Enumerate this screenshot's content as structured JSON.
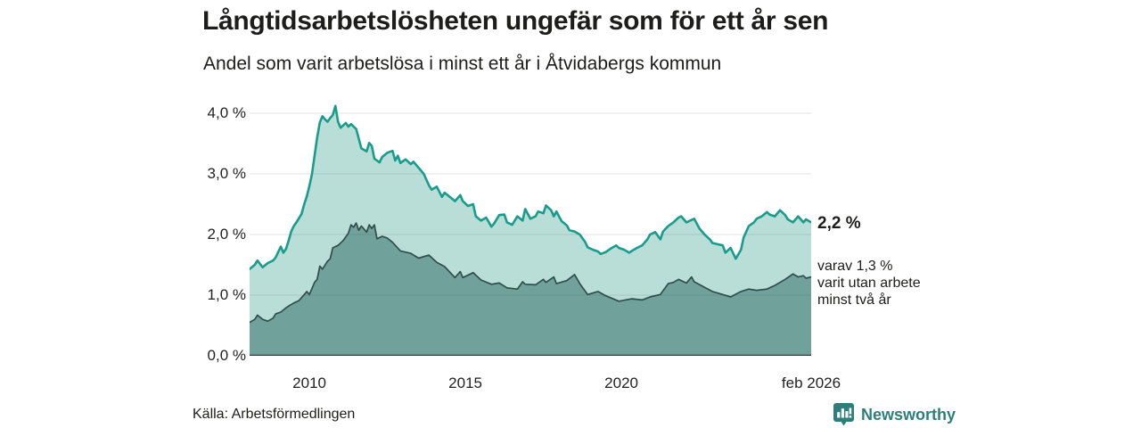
{
  "header": {
    "title": "Långtidsarbetslösheten ungefär som för ett år sen",
    "subtitle": "Andel som varit arbetslösa i minst ett år i Åtvidabergs kommun"
  },
  "annotations": {
    "total_label": "2,2 %",
    "sub_lines": [
      "varav 1,3 %",
      "varit utan arbete",
      "minst två år"
    ]
  },
  "footer": {
    "source": "Källa: Arbetsförmedlingen",
    "brand": "Newsworthy"
  },
  "colors": {
    "total_line": "#1a9c8c",
    "total_fill": "#b9ddd7",
    "two_year_line": "#2e4f4b",
    "two_year_fill": "#71a19b",
    "grid": "rgba(60,60,60,0.15)",
    "axis": "#3a3a3a",
    "brand_teal": "#2f7e7b"
  },
  "chart_data": {
    "type": "area",
    "title": "Långtidsarbetslösheten ungefär som för ett år sen",
    "subtitle": "Andel som varit arbetslösa i minst ett år i Åtvidabergs kommun",
    "x_unit": "months since feb 2008",
    "x_range_months": [
      0,
      216
    ],
    "ylim": [
      0,
      4.3
    ],
    "grid": true,
    "x_axis_ticks": [
      {
        "m": 23,
        "label": "2010"
      },
      {
        "m": 83,
        "label": "2015"
      },
      {
        "m": 143,
        "label": "2020"
      },
      {
        "m": 216,
        "label": "feb 2026"
      }
    ],
    "y_axis_ticks": [
      {
        "value": 0,
        "label": "0,0 %"
      },
      {
        "value": 1,
        "label": "1,0 %"
      },
      {
        "value": 2,
        "label": "2,0 %"
      },
      {
        "value": 3,
        "label": "3,0 %"
      },
      {
        "value": 4,
        "label": "4,0 %"
      }
    ],
    "series": [
      {
        "name": "Arbetslösa minst ett år",
        "end_value_label": "2,2 %",
        "line_color": "#1a9c8c",
        "fill_color": "#b9ddd7",
        "line_width": 2.6,
        "points": [
          [
            0,
            1.43
          ],
          [
            2,
            1.5
          ],
          [
            3,
            1.57
          ],
          [
            5,
            1.46
          ],
          [
            7,
            1.53
          ],
          [
            9,
            1.57
          ],
          [
            10,
            1.62
          ],
          [
            12,
            1.8
          ],
          [
            13,
            1.7
          ],
          [
            14,
            1.76
          ],
          [
            15,
            1.9
          ],
          [
            16,
            2.05
          ],
          [
            17,
            2.14
          ],
          [
            18,
            2.2
          ],
          [
            20,
            2.34
          ],
          [
            21,
            2.5
          ],
          [
            22,
            2.63
          ],
          [
            23,
            2.8
          ],
          [
            24,
            3.0
          ],
          [
            25,
            3.3
          ],
          [
            26,
            3.6
          ],
          [
            27,
            3.85
          ],
          [
            28,
            3.95
          ],
          [
            29,
            3.9
          ],
          [
            30,
            3.86
          ],
          [
            31,
            3.92
          ],
          [
            32,
            3.97
          ],
          [
            33,
            4.12
          ],
          [
            34,
            3.86
          ],
          [
            35,
            3.76
          ],
          [
            37,
            3.84
          ],
          [
            38,
            3.78
          ],
          [
            39,
            3.82
          ],
          [
            41,
            3.74
          ],
          [
            43,
            3.42
          ],
          [
            45,
            3.37
          ],
          [
            46,
            3.51
          ],
          [
            47,
            3.46
          ],
          [
            48,
            3.25
          ],
          [
            50,
            3.19
          ],
          [
            51,
            3.28
          ],
          [
            53,
            3.35
          ],
          [
            55,
            3.38
          ],
          [
            56,
            3.22
          ],
          [
            57,
            3.3
          ],
          [
            58,
            3.18
          ],
          [
            60,
            3.24
          ],
          [
            62,
            3.16
          ],
          [
            63,
            3.2
          ],
          [
            65,
            3.1
          ],
          [
            67,
            3.0
          ],
          [
            69,
            2.81
          ],
          [
            70,
            2.74
          ],
          [
            72,
            2.79
          ],
          [
            74,
            2.62
          ],
          [
            75,
            2.69
          ],
          [
            77,
            2.62
          ],
          [
            79,
            2.55
          ],
          [
            81,
            2.65
          ],
          [
            82,
            2.55
          ],
          [
            84,
            2.47
          ],
          [
            86,
            2.5
          ],
          [
            87,
            2.3
          ],
          [
            89,
            2.23
          ],
          [
            91,
            2.28
          ],
          [
            93,
            2.13
          ],
          [
            94,
            2.18
          ],
          [
            96,
            2.32
          ],
          [
            98,
            2.33
          ],
          [
            99,
            2.2
          ],
          [
            101,
            2.16
          ],
          [
            103,
            2.3
          ],
          [
            105,
            2.23
          ],
          [
            106,
            2.42
          ],
          [
            108,
            2.26
          ],
          [
            110,
            2.3
          ],
          [
            111,
            2.38
          ],
          [
            113,
            2.35
          ],
          [
            114,
            2.48
          ],
          [
            116,
            2.4
          ],
          [
            117,
            2.3
          ],
          [
            118,
            2.38
          ],
          [
            120,
            2.22
          ],
          [
            122,
            2.15
          ],
          [
            123,
            2.07
          ],
          [
            125,
            2.05
          ],
          [
            127,
            2.0
          ],
          [
            129,
            1.88
          ],
          [
            130,
            1.79
          ],
          [
            132,
            1.75
          ],
          [
            134,
            1.72
          ],
          [
            135,
            1.68
          ],
          [
            137,
            1.71
          ],
          [
            139,
            1.77
          ],
          [
            141,
            1.82
          ],
          [
            142,
            1.78
          ],
          [
            144,
            1.75
          ],
          [
            146,
            1.7
          ],
          [
            147,
            1.73
          ],
          [
            149,
            1.78
          ],
          [
            151,
            1.82
          ],
          [
            153,
            1.92
          ],
          [
            154,
            2.0
          ],
          [
            156,
            2.04
          ],
          [
            158,
            1.92
          ],
          [
            159,
            2.05
          ],
          [
            161,
            2.14
          ],
          [
            163,
            2.2
          ],
          [
            165,
            2.28
          ],
          [
            166,
            2.3
          ],
          [
            168,
            2.2
          ],
          [
            170,
            2.24
          ],
          [
            171,
            2.26
          ],
          [
            173,
            2.1
          ],
          [
            175,
            2.0
          ],
          [
            177,
            1.92
          ],
          [
            178,
            1.86
          ],
          [
            180,
            1.84
          ],
          [
            182,
            1.82
          ],
          [
            183,
            1.7
          ],
          [
            185,
            1.78
          ],
          [
            187,
            1.6
          ],
          [
            189,
            1.75
          ],
          [
            190,
            1.95
          ],
          [
            192,
            2.14
          ],
          [
            194,
            2.2
          ],
          [
            195,
            2.26
          ],
          [
            197,
            2.3
          ],
          [
            199,
            2.37
          ],
          [
            200,
            2.33
          ],
          [
            202,
            2.3
          ],
          [
            204,
            2.4
          ],
          [
            206,
            2.32
          ],
          [
            207,
            2.25
          ],
          [
            209,
            2.2
          ],
          [
            211,
            2.3
          ],
          [
            213,
            2.2
          ],
          [
            214,
            2.25
          ],
          [
            216,
            2.2
          ]
        ]
      },
      {
        "name": "varav utan arbete minst två år",
        "end_value_label": "varav 1,3 % varit utan arbete minst två år",
        "line_color": "#2e4f4b",
        "fill_color": "#71a19b",
        "line_width": 1.7,
        "points": [
          [
            0,
            0.55
          ],
          [
            2,
            0.6
          ],
          [
            3,
            0.67
          ],
          [
            5,
            0.6
          ],
          [
            7,
            0.57
          ],
          [
            9,
            0.62
          ],
          [
            10,
            0.69
          ],
          [
            12,
            0.72
          ],
          [
            14,
            0.79
          ],
          [
            15,
            0.82
          ],
          [
            17,
            0.87
          ],
          [
            19,
            0.91
          ],
          [
            21,
            1.01
          ],
          [
            22,
            1.06
          ],
          [
            23,
            1.01
          ],
          [
            25,
            1.21
          ],
          [
            26,
            1.26
          ],
          [
            27,
            1.48
          ],
          [
            28,
            1.43
          ],
          [
            30,
            1.56
          ],
          [
            31,
            1.6
          ],
          [
            32,
            1.78
          ],
          [
            34,
            1.82
          ],
          [
            36,
            1.9
          ],
          [
            38,
            2.02
          ],
          [
            39,
            2.16
          ],
          [
            40,
            2.12
          ],
          [
            41,
            2.19
          ],
          [
            42,
            2.07
          ],
          [
            43,
            2.14
          ],
          [
            45,
            2.04
          ],
          [
            46,
            2.16
          ],
          [
            47,
            2.1
          ],
          [
            48,
            2.16
          ],
          [
            49,
            1.93
          ],
          [
            51,
            1.97
          ],
          [
            53,
            1.94
          ],
          [
            55,
            1.87
          ],
          [
            58,
            1.73
          ],
          [
            62,
            1.69
          ],
          [
            65,
            1.61
          ],
          [
            69,
            1.66
          ],
          [
            72,
            1.54
          ],
          [
            75,
            1.47
          ],
          [
            79,
            1.29
          ],
          [
            81,
            1.39
          ],
          [
            82,
            1.29
          ],
          [
            86,
            1.37
          ],
          [
            89,
            1.25
          ],
          [
            93,
            1.18
          ],
          [
            96,
            1.2
          ],
          [
            99,
            1.12
          ],
          [
            103,
            1.1
          ],
          [
            105,
            1.22
          ],
          [
            106,
            1.18
          ],
          [
            110,
            1.17
          ],
          [
            113,
            1.26
          ],
          [
            114,
            1.21
          ],
          [
            117,
            1.3
          ],
          [
            118,
            1.19
          ],
          [
            122,
            1.24
          ],
          [
            125,
            1.34
          ],
          [
            127,
            1.19
          ],
          [
            130,
            1.01
          ],
          [
            134,
            1.06
          ],
          [
            137,
            0.99
          ],
          [
            142,
            0.9
          ],
          [
            147,
            0.94
          ],
          [
            151,
            0.92
          ],
          [
            154,
            0.97
          ],
          [
            158,
            1.01
          ],
          [
            161,
            1.19
          ],
          [
            163,
            1.21
          ],
          [
            165,
            1.26
          ],
          [
            168,
            1.2
          ],
          [
            170,
            1.3
          ],
          [
            171,
            1.22
          ],
          [
            175,
            1.13
          ],
          [
            178,
            1.06
          ],
          [
            182,
            1.01
          ],
          [
            185,
            0.97
          ],
          [
            189,
            1.06
          ],
          [
            192,
            1.1
          ],
          [
            195,
            1.08
          ],
          [
            199,
            1.1
          ],
          [
            202,
            1.16
          ],
          [
            206,
            1.26
          ],
          [
            209,
            1.35
          ],
          [
            211,
            1.3
          ],
          [
            213,
            1.32
          ],
          [
            214,
            1.28
          ],
          [
            216,
            1.3
          ]
        ]
      }
    ]
  }
}
